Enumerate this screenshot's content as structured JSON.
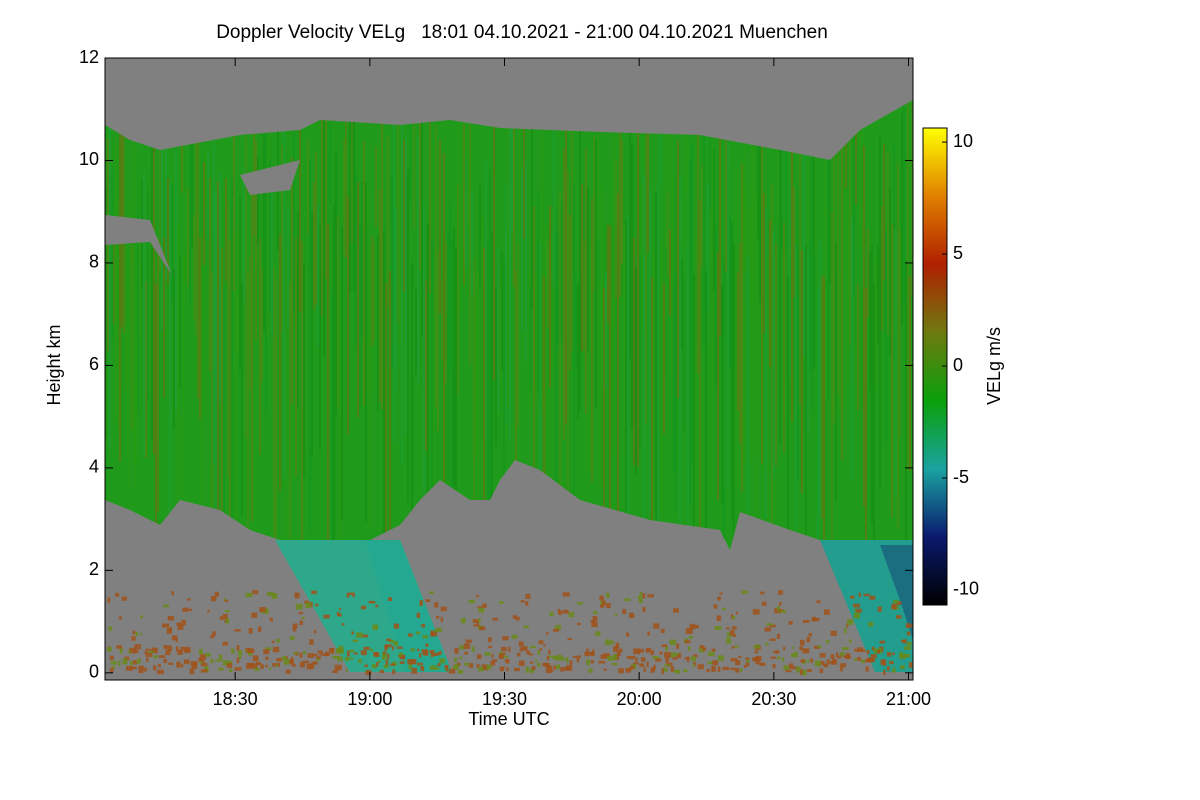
{
  "chart_data": {
    "type": "heatmap",
    "title": "Doppler Velocity VELg   18:01 04.10.2021 - 21:00 04.10.2021 Muenchen",
    "x_label": "Time UTC",
    "y_label": "Height km",
    "colorbar_label": "VELg m/s",
    "xlim": [
      1081,
      1261
    ],
    "xticks": [
      {
        "value": 1110,
        "label": "18:30"
      },
      {
        "value": 1140,
        "label": "19:00"
      },
      {
        "value": 1170,
        "label": "19:30"
      },
      {
        "value": 1200,
        "label": "20:00"
      },
      {
        "value": 1230,
        "label": "20:30"
      },
      {
        "value": 1260,
        "label": "21:00"
      }
    ],
    "ylim": [
      -0.14,
      12
    ],
    "yticks": [
      0,
      2,
      4,
      6,
      8,
      10,
      12
    ],
    "zlim": [
      -10.67,
      10.63
    ],
    "zticks": [
      -10,
      -5,
      0,
      5,
      10
    ],
    "colormap": [
      "#000000",
      "#0a1a6e",
      "#1aa3a0",
      "#0aa00a",
      "#6e7a10",
      "#b02000",
      "#e08000",
      "#ffff00"
    ],
    "missing_color": "#808080"
  }
}
